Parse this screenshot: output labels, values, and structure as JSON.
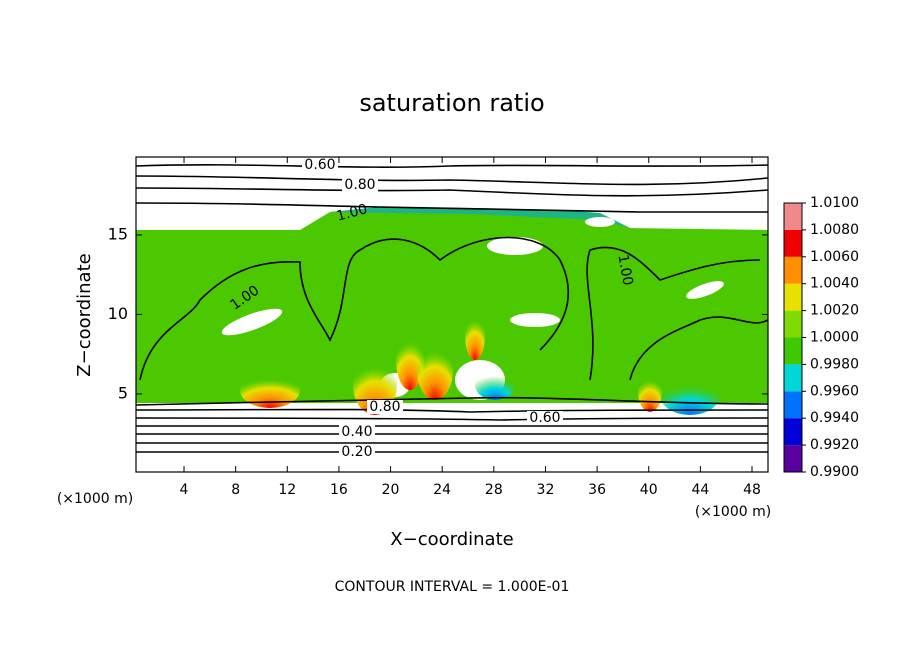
{
  "chart_data": {
    "type": "contour",
    "title": "saturation ratio",
    "xlabel": "X−coordinate",
    "ylabel": "Z−coordinate",
    "unit_label": "(×1000 m)",
    "xlim": [
      0.28,
      49.24
    ],
    "ylim": [
      0.09,
      19.9
    ],
    "xticks": [
      4,
      8,
      12,
      16,
      20,
      24,
      28,
      32,
      36,
      40,
      44,
      48
    ],
    "yticks": [
      5,
      10,
      15
    ],
    "colorbar": {
      "levels": [
        {
          "value": 0.99,
          "label": "0.9900"
        },
        {
          "value": 0.992,
          "label": "0.9920"
        },
        {
          "value": 0.994,
          "label": "0.9940"
        },
        {
          "value": 0.996,
          "label": "0.9960"
        },
        {
          "value": 0.998,
          "label": "0.9980"
        },
        {
          "value": 1.0,
          "label": "1.0000"
        },
        {
          "value": 1.002,
          "label": "1.0020"
        },
        {
          "value": 1.004,
          "label": "1.0040"
        },
        {
          "value": 1.006,
          "label": "1.0060"
        },
        {
          "value": 1.008,
          "label": "1.0080"
        },
        {
          "value": 1.01,
          "label": "1.0100"
        }
      ],
      "colors": [
        "#5a00a0",
        "#0000d8",
        "#0070ff",
        "#00d8d8",
        "#40c800",
        "#80dc00",
        "#e8e000",
        "#ff9000",
        "#f00000",
        "#f08a8a"
      ]
    },
    "contour_labels": [
      "0.60",
      "0.80",
      "1.00",
      "1.00",
      "1.00",
      "0.80",
      "0.60",
      "0.40",
      "0.20"
    ],
    "footer": "CONTOUR INTERVAL = 1.000E-01"
  }
}
